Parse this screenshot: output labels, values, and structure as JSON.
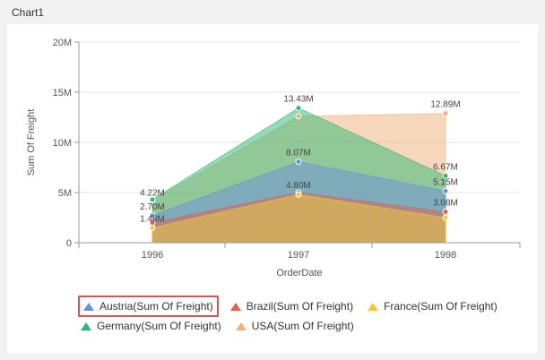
{
  "panel_title": "Chart1",
  "chart_data": {
    "type": "area",
    "xlabel": "OrderDate",
    "ylabel": "Sum Of Freight",
    "categories": [
      "1996",
      "1997",
      "1998"
    ],
    "y_ticks": [
      "0",
      "5M",
      "10M",
      "15M",
      "20M"
    ],
    "ylim": [
      0,
      20
    ],
    "y_unit": "M",
    "grid": true,
    "legend_position": "bottom",
    "series": [
      {
        "name": "USA(Sum Of Freight)",
        "color": "#f0b07a",
        "values": [
          4.22,
          12.6,
          12.89
        ],
        "labels": [
          "",
          "",
          "12.89M"
        ]
      },
      {
        "name": "Germany(Sum Of Freight)",
        "color": "#2eb872",
        "values": [
          4.3,
          13.43,
          6.67
        ],
        "labels": [
          "",
          "13.43M",
          "6.67M"
        ]
      },
      {
        "name": "Austria(Sum Of Freight)",
        "color": "#6c8fe0",
        "values": [
          2.7,
          8.07,
          5.15
        ],
        "labels": [
          "2.70M",
          "8.07M",
          "5.15M"
        ]
      },
      {
        "name": "Brazil(Sum Of Freight)",
        "color": "#e0614f",
        "values": [
          2.0,
          5.0,
          3.08
        ],
        "labels": [
          "",
          "",
          "3.08M"
        ]
      },
      {
        "name": "France(Sum Of Freight)",
        "color": "#f3c93a",
        "values": [
          1.48,
          4.8,
          2.5
        ],
        "labels": [
          "1.48M",
          "4.80M",
          ""
        ]
      }
    ],
    "extra_labels": [
      {
        "series": "USA(Sum Of Freight)",
        "index": 0,
        "text": "4.22M"
      }
    ]
  },
  "legend": {
    "rows": [
      [
        {
          "label": "Austria(Sum Of Freight)",
          "color": "#6c8fe0",
          "selected": true
        },
        {
          "label": "Brazil(Sum Of Freight)",
          "color": "#e0614f",
          "selected": false
        },
        {
          "label": "France(Sum Of Freight)",
          "color": "#f3c93a",
          "selected": false
        }
      ],
      [
        {
          "label": "Germany(Sum Of Freight)",
          "color": "#2eb872",
          "selected": false
        },
        {
          "label": "USA(Sum Of Freight)",
          "color": "#f0b07a",
          "selected": false
        }
      ]
    ]
  }
}
